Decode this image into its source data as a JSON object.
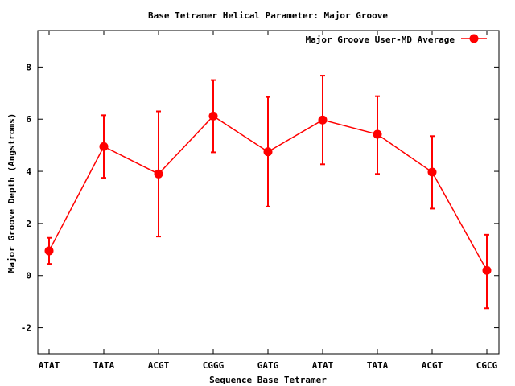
{
  "chart_data": {
    "type": "line",
    "title": "Base Tetramer Helical Parameter: Major Groove",
    "xlabel": "Sequence Base Tetramer",
    "ylabel": "Major Groove Depth (Angstroms)",
    "categories": [
      "ATAT",
      "TATA",
      "ACGT",
      "CGGG",
      "GATG",
      "ATAT",
      "TATA",
      "ACGT",
      "CGCG"
    ],
    "y_ticks": [
      "-2",
      "0",
      "2",
      "4",
      "6",
      "8"
    ],
    "ylim": [
      -3,
      9.4
    ],
    "grid": false,
    "legend_position": "top-right",
    "series": [
      {
        "name": "Major Groove User-MD Average",
        "color": "#ff0000",
        "values": [
          0.95,
          4.95,
          3.9,
          6.12,
          4.75,
          5.97,
          5.42,
          3.97,
          0.2
        ],
        "err_low": [
          0.45,
          3.75,
          1.5,
          4.73,
          2.65,
          4.27,
          3.9,
          2.57,
          -1.25
        ],
        "err_high": [
          1.45,
          6.15,
          6.3,
          7.5,
          6.85,
          7.67,
          6.88,
          5.35,
          1.57
        ]
      }
    ]
  }
}
